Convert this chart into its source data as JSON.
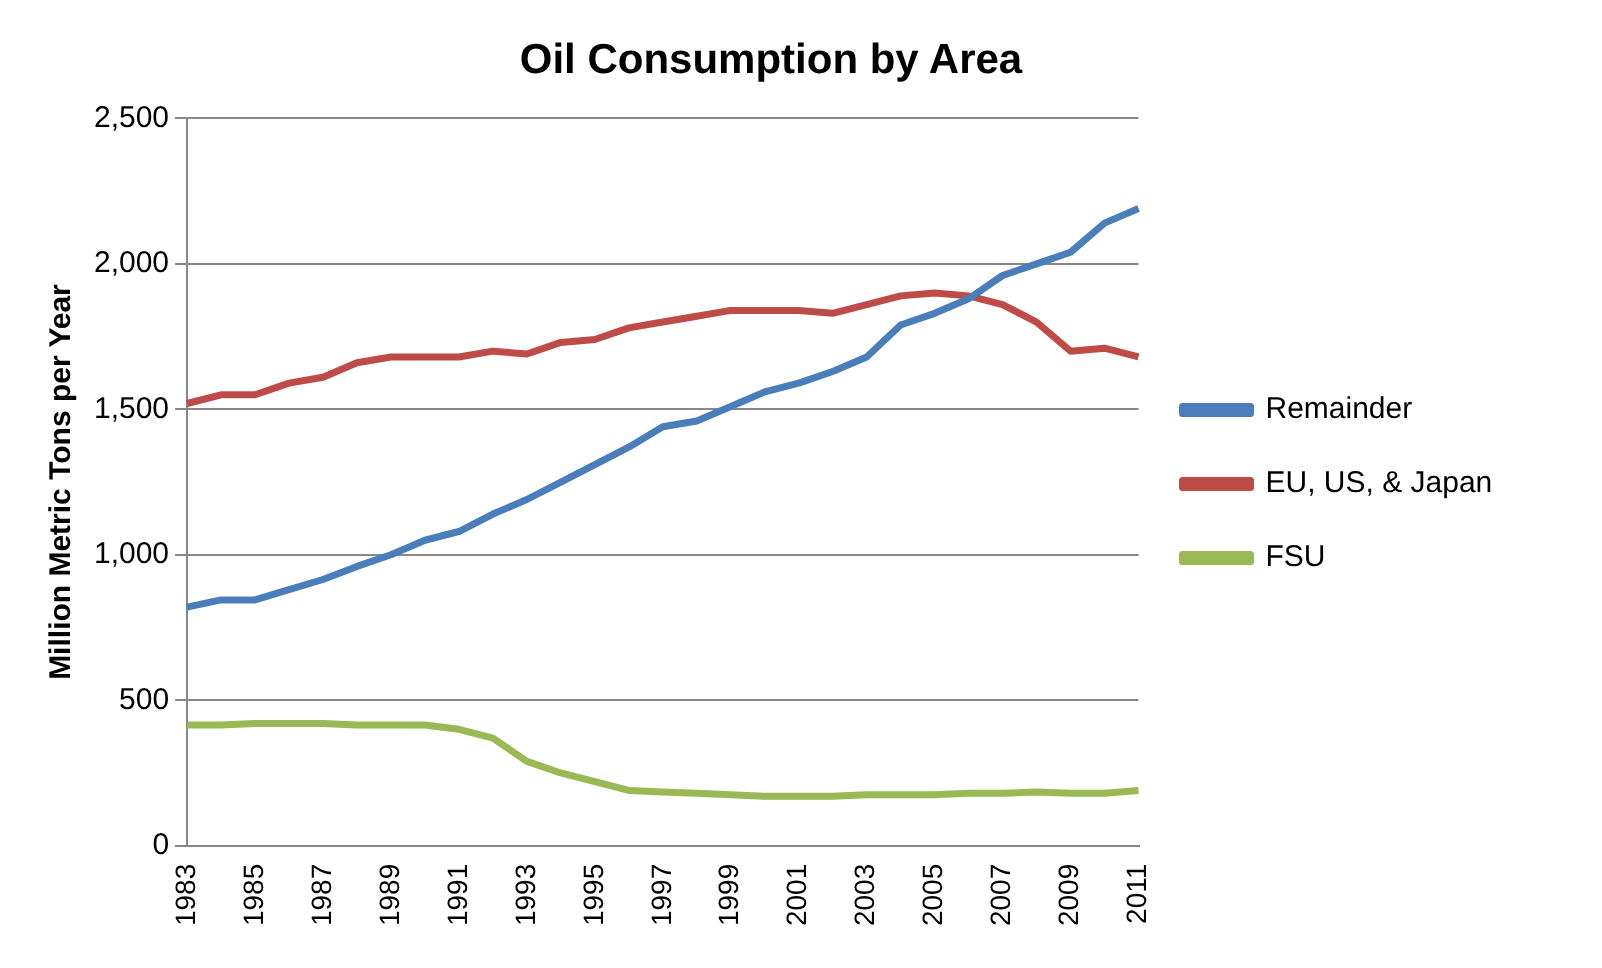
{
  "chart_data": {
    "type": "line",
    "title": "Oil Consumption by Area",
    "ylabel": "Million Metric Tons per Year",
    "categories": [
      "1983",
      null,
      "1985",
      null,
      "1987",
      null,
      "1989",
      null,
      "1991",
      null,
      "1993",
      null,
      "1995",
      null,
      "1997",
      null,
      "1999",
      null,
      "2001",
      null,
      "2003",
      null,
      "2005",
      null,
      "2007",
      null,
      "2009",
      null,
      "2011"
    ],
    "series": [
      {
        "name": "Remainder",
        "color": "#4a7ebb",
        "values": [
          820,
          845,
          845,
          880,
          915,
          960,
          1000,
          1050,
          1080,
          1140,
          1190,
          1250,
          1310,
          1370,
          1440,
          1460,
          1510,
          1560,
          1590,
          1630,
          1680,
          1790,
          1830,
          1880,
          1960,
          2000,
          2040,
          2140,
          2190
        ]
      },
      {
        "name": "EU, US, & Japan",
        "color": "#be4b48",
        "values": [
          1520,
          1550,
          1550,
          1590,
          1610,
          1660,
          1680,
          1680,
          1680,
          1700,
          1690,
          1730,
          1740,
          1780,
          1800,
          1820,
          1840,
          1840,
          1840,
          1830,
          1860,
          1890,
          1900,
          1890,
          1860,
          1800,
          1700,
          1710,
          1680
        ]
      },
      {
        "name": "FSU",
        "color": "#98b954",
        "values": [
          415,
          415,
          420,
          420,
          420,
          415,
          415,
          415,
          400,
          370,
          290,
          250,
          220,
          190,
          185,
          180,
          175,
          170,
          170,
          170,
          175,
          175,
          175,
          180,
          180,
          185,
          180,
          180,
          190
        ]
      }
    ],
    "ylim": [
      0,
      2500
    ],
    "yticks": [
      {
        "value": 0,
        "label": "0"
      },
      {
        "value": 500,
        "label": "500"
      },
      {
        "value": 1000,
        "label": "1,000"
      },
      {
        "value": 1500,
        "label": "1,500"
      },
      {
        "value": 2000,
        "label": "2,000"
      },
      {
        "value": 2500,
        "label": "2,500"
      }
    ],
    "grid": "y",
    "legend": "right",
    "marker": "none"
  }
}
